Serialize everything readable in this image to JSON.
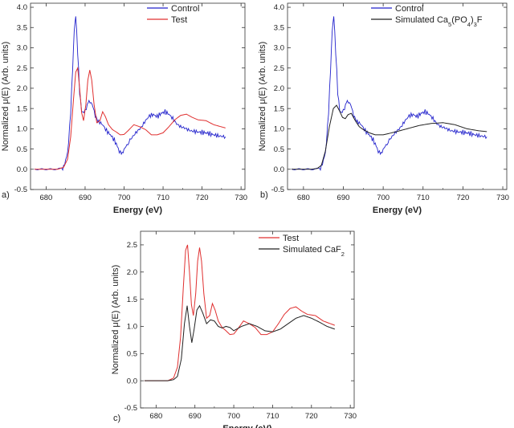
{
  "chart_data": [
    {
      "type": "line",
      "panel_label": "a)",
      "xlabel": "Energy (eV)",
      "ylabel": "Normalized μ(E) (Arb. units)",
      "xlim": [
        676,
        731
      ],
      "ylim": [
        -0.5,
        4.1
      ],
      "xticks": [
        680,
        690,
        700,
        710,
        720,
        730
      ],
      "yticks": [
        -0.5,
        0.0,
        0.5,
        1.0,
        1.5,
        2.0,
        2.5,
        3.0,
        3.5,
        4.0
      ],
      "legend_position": "top-right",
      "series": [
        {
          "name": "Control",
          "color": "#2222cc",
          "x": [
            677,
            680,
            683,
            684.5,
            685.5,
            686.3,
            686.8,
            687.2,
            687.6,
            688.1,
            688.6,
            689.1,
            689.7,
            690.3,
            691,
            691.8,
            692.6,
            693.5,
            694.5,
            695.5,
            696.5,
            697.5,
            698.5,
            699.3,
            700.2,
            701.5,
            703,
            704.5,
            705.5,
            706.5,
            707.5,
            708.5,
            709.5,
            710.5,
            711.5,
            712.5,
            713.5,
            714.5,
            715.5,
            717,
            719,
            721,
            723,
            724.5,
            726
          ],
          "y": [
            0.0,
            0.0,
            0.0,
            0.05,
            0.4,
            1.4,
            2.5,
            3.4,
            3.8,
            2.9,
            1.9,
            1.45,
            1.38,
            1.5,
            1.72,
            1.6,
            1.3,
            1.18,
            1.1,
            0.95,
            0.85,
            0.72,
            0.52,
            0.38,
            0.5,
            0.72,
            0.9,
            1.05,
            1.2,
            1.32,
            1.35,
            1.3,
            1.38,
            1.42,
            1.36,
            1.25,
            1.12,
            1.05,
            1.02,
            0.95,
            0.92,
            0.9,
            0.85,
            0.82,
            0.8
          ]
        },
        {
          "name": "Test",
          "color": "#e03030",
          "x": [
            677,
            680,
            683,
            684.5,
            685.5,
            686.3,
            687,
            687.6,
            688.1,
            688.6,
            689.1,
            689.6,
            690.2,
            690.7,
            691.2,
            691.7,
            692.3,
            693,
            693.8,
            694.5,
            695.2,
            696,
            697,
            698,
            699,
            700,
            701,
            702.5,
            704,
            705.5,
            707,
            708.5,
            710,
            711.5,
            713,
            714.5,
            716,
            717.5,
            719,
            721,
            723,
            726
          ],
          "y": [
            0.0,
            0.0,
            0.0,
            0.05,
            0.25,
            0.8,
            1.7,
            2.4,
            2.5,
            2.0,
            1.4,
            1.2,
            1.6,
            2.2,
            2.45,
            2.2,
            1.6,
            1.15,
            1.2,
            1.42,
            1.3,
            1.1,
            0.98,
            0.92,
            0.85,
            0.86,
            0.95,
            1.1,
            1.05,
            0.98,
            0.85,
            0.85,
            0.9,
            1.05,
            1.22,
            1.33,
            1.36,
            1.28,
            1.22,
            1.2,
            1.1,
            1.02
          ]
        }
      ]
    },
    {
      "type": "line",
      "panel_label": "b)",
      "xlabel": "Energy (eV)",
      "ylabel": "Normalized μ(E) (Arb. units)",
      "xlim": [
        676,
        731
      ],
      "ylim": [
        -0.5,
        4.1
      ],
      "xticks": [
        680,
        690,
        700,
        710,
        720,
        730
      ],
      "yticks": [
        -0.5,
        0.0,
        0.5,
        1.0,
        1.5,
        2.0,
        2.5,
        3.0,
        3.5,
        4.0
      ],
      "legend_position": "top-right",
      "series": [
        {
          "name": "Control",
          "color": "#2222cc",
          "x": [
            677,
            680,
            683,
            684.5,
            685.5,
            686.3,
            686.8,
            687.2,
            687.6,
            688.1,
            688.6,
            689.1,
            689.7,
            690.3,
            691,
            691.8,
            692.6,
            693.5,
            694.5,
            695.5,
            696.5,
            697.5,
            698.5,
            699.3,
            700.2,
            701.5,
            703,
            704.5,
            705.5,
            706.5,
            707.5,
            708.5,
            709.5,
            710.5,
            711.5,
            712.5,
            713.5,
            714.5,
            715.5,
            717,
            719,
            721,
            723,
            724.5,
            726
          ],
          "y": [
            0.0,
            0.0,
            0.0,
            0.05,
            0.4,
            1.4,
            2.5,
            3.4,
            3.8,
            2.9,
            1.9,
            1.45,
            1.38,
            1.5,
            1.72,
            1.6,
            1.3,
            1.18,
            1.1,
            0.95,
            0.85,
            0.72,
            0.52,
            0.38,
            0.5,
            0.72,
            0.9,
            1.05,
            1.2,
            1.32,
            1.35,
            1.3,
            1.38,
            1.42,
            1.36,
            1.25,
            1.12,
            1.05,
            1.02,
            0.95,
            0.92,
            0.9,
            0.85,
            0.82,
            0.8
          ]
        },
        {
          "name_parts": [
            "Simulated Ca",
            "5",
            "(PO",
            "4",
            ")",
            "3",
            "F"
          ],
          "color": "#222222",
          "x": [
            677,
            680,
            682,
            683.5,
            684.5,
            685.5,
            686.5,
            687.5,
            688.3,
            689,
            689.8,
            690.5,
            691.2,
            692,
            693,
            694,
            695,
            696.5,
            698,
            700,
            703,
            706,
            709,
            712,
            715,
            718,
            721,
            724,
            726
          ],
          "y": [
            0.0,
            0.0,
            0.0,
            0.02,
            0.1,
            0.45,
            1.05,
            1.5,
            1.58,
            1.45,
            1.28,
            1.25,
            1.35,
            1.38,
            1.2,
            1.05,
            0.98,
            0.9,
            0.85,
            0.85,
            0.92,
            1.0,
            1.08,
            1.13,
            1.15,
            1.1,
            1.0,
            0.95,
            0.93
          ]
        }
      ]
    },
    {
      "type": "line",
      "panel_label": "c)",
      "xlabel": "Energy (eV)",
      "ylabel": "Normalized μ(E) (Arb. units)",
      "xlim": [
        676,
        731
      ],
      "ylim": [
        -0.5,
        2.75
      ],
      "xticks": [
        680,
        690,
        700,
        710,
        720,
        730
      ],
      "yticks": [
        -0.5,
        0.0,
        0.5,
        1.0,
        1.5,
        2.0,
        2.5
      ],
      "legend_position": "top-left",
      "series": [
        {
          "name": "Test",
          "color": "#e03030",
          "x": [
            677,
            680,
            683,
            684.5,
            685.5,
            686.3,
            687,
            687.6,
            688.1,
            688.6,
            689.1,
            689.6,
            690.2,
            690.7,
            691.2,
            691.7,
            692.3,
            693,
            693.8,
            694.5,
            695.2,
            696,
            697,
            698,
            699,
            700,
            701,
            702.5,
            704,
            705.5,
            707,
            708.5,
            710,
            711.5,
            713,
            714.5,
            716,
            717.5,
            719,
            721,
            723,
            726
          ],
          "y": [
            0.0,
            0.0,
            0.0,
            0.05,
            0.25,
            0.8,
            1.7,
            2.4,
            2.5,
            2.0,
            1.4,
            1.2,
            1.6,
            2.2,
            2.45,
            2.2,
            1.6,
            1.15,
            1.2,
            1.42,
            1.3,
            1.1,
            0.98,
            0.92,
            0.85,
            0.86,
            0.95,
            1.1,
            1.05,
            0.98,
            0.85,
            0.85,
            0.9,
            1.05,
            1.22,
            1.33,
            1.36,
            1.28,
            1.22,
            1.2,
            1.1,
            1.02
          ]
        },
        {
          "name_parts": [
            "Simulated CaF",
            "2"
          ],
          "color": "#222222",
          "x": [
            677,
            680,
            683,
            684.5,
            685.5,
            686.5,
            687.3,
            688,
            688.6,
            689.2,
            689.8,
            690.5,
            691.2,
            692,
            693,
            694,
            695,
            696,
            697,
            698,
            699,
            700,
            702,
            704,
            706,
            708,
            710,
            712,
            714,
            716,
            718,
            720,
            722,
            724,
            726
          ],
          "y": [
            0.0,
            0.0,
            0.0,
            0.02,
            0.08,
            0.4,
            1.05,
            1.38,
            1.0,
            0.7,
            0.95,
            1.3,
            1.38,
            1.25,
            1.05,
            1.12,
            1.1,
            1.0,
            0.97,
            1.0,
            0.98,
            0.92,
            1.0,
            1.05,
            1.0,
            0.92,
            0.9,
            0.95,
            1.05,
            1.15,
            1.2,
            1.15,
            1.08,
            1.0,
            0.95
          ]
        }
      ]
    }
  ]
}
